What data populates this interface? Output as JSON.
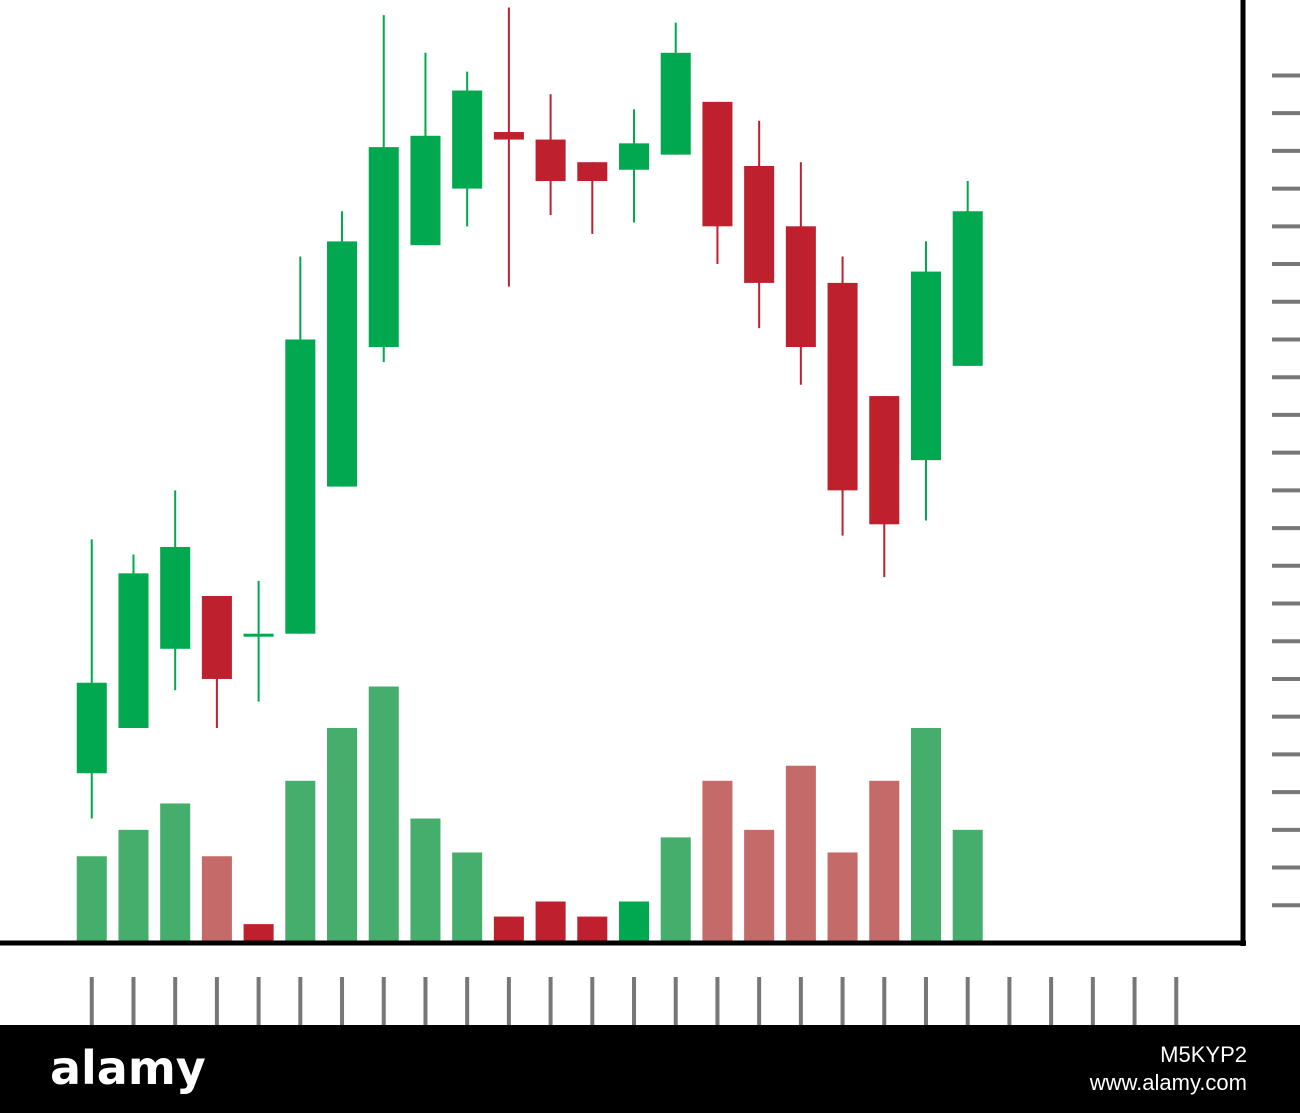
{
  "chart_data": {
    "type": "candlestick",
    "x": [
      1,
      2,
      3,
      4,
      5,
      6,
      7,
      8,
      9,
      10,
      11,
      12,
      13,
      14,
      15,
      16,
      17,
      18,
      19,
      20,
      21,
      22
    ],
    "open": [
      4.5,
      5.7,
      7.8,
      9.2,
      8.2,
      8.2,
      12.1,
      15.8,
      18.5,
      20.0,
      21.5,
      21.3,
      20.7,
      20.5,
      20.9,
      22.3,
      20.6,
      19.0,
      17.5,
      14.5,
      12.8,
      15.3
    ],
    "high": [
      10.7,
      10.3,
      12.0,
      9.2,
      9.6,
      18.2,
      19.4,
      24.6,
      23.6,
      23.1,
      24.8,
      22.5,
      20.7,
      22.1,
      24.4,
      22.3,
      21.8,
      20.7,
      18.2,
      14.5,
      18.6,
      20.2
    ],
    "low": [
      3.3,
      5.7,
      6.7,
      5.7,
      6.4,
      8.2,
      12.1,
      15.4,
      18.5,
      19.0,
      17.4,
      19.3,
      18.8,
      19.1,
      20.9,
      18.0,
      16.3,
      14.8,
      10.8,
      9.7,
      11.2,
      15.3
    ],
    "close": [
      6.9,
      9.8,
      10.5,
      7.0,
      8.2,
      16.0,
      18.6,
      21.1,
      21.4,
      22.6,
      21.3,
      20.2,
      20.2,
      21.2,
      23.6,
      19.0,
      17.5,
      15.8,
      12.0,
      11.1,
      17.8,
      19.4
    ],
    "up_color": "#02a84f",
    "down_color": "#be202e",
    "volume": [
      2.3,
      3.0,
      3.7,
      2.3,
      0.5,
      4.3,
      5.7,
      6.8,
      3.3,
      2.4,
      0.7,
      1.1,
      0.7,
      1.1,
      2.8,
      4.3,
      3.0,
      4.7,
      2.4,
      4.3,
      5.7,
      3.0
    ],
    "volume_colors": [
      "#45ae6c",
      "#45ae6c",
      "#45ae6c",
      "#c46b6a",
      "#be202e",
      "#45ae6c",
      "#45ae6c",
      "#45ae6c",
      "#45ae6c",
      "#45ae6c",
      "#be202e",
      "#be202e",
      "#be202e",
      "#02a84f",
      "#45ae6c",
      "#c46b6a",
      "#c46b6a",
      "#c46b6a",
      "#c46b6a",
      "#c46b6a",
      "#45ae6c",
      "#45ae6c"
    ],
    "xlim": [
      -1.2,
      28.6
    ],
    "xticks": [
      1,
      2,
      3,
      4,
      5,
      6,
      7,
      8,
      9,
      10,
      11,
      12,
      13,
      14,
      15,
      16,
      17,
      18,
      19,
      20,
      21,
      22,
      23,
      24,
      25,
      26,
      27
    ],
    "ylim": [
      0,
      25
    ],
    "yticks": [
      1,
      2,
      3,
      4,
      5,
      6,
      7,
      8,
      9,
      10,
      11,
      12,
      13,
      14,
      15,
      16,
      17,
      18,
      19,
      20,
      21,
      22,
      23
    ]
  },
  "watermark": {
    "brand": "alamy",
    "id": "M5KYP2",
    "url": "www.alamy.com"
  }
}
